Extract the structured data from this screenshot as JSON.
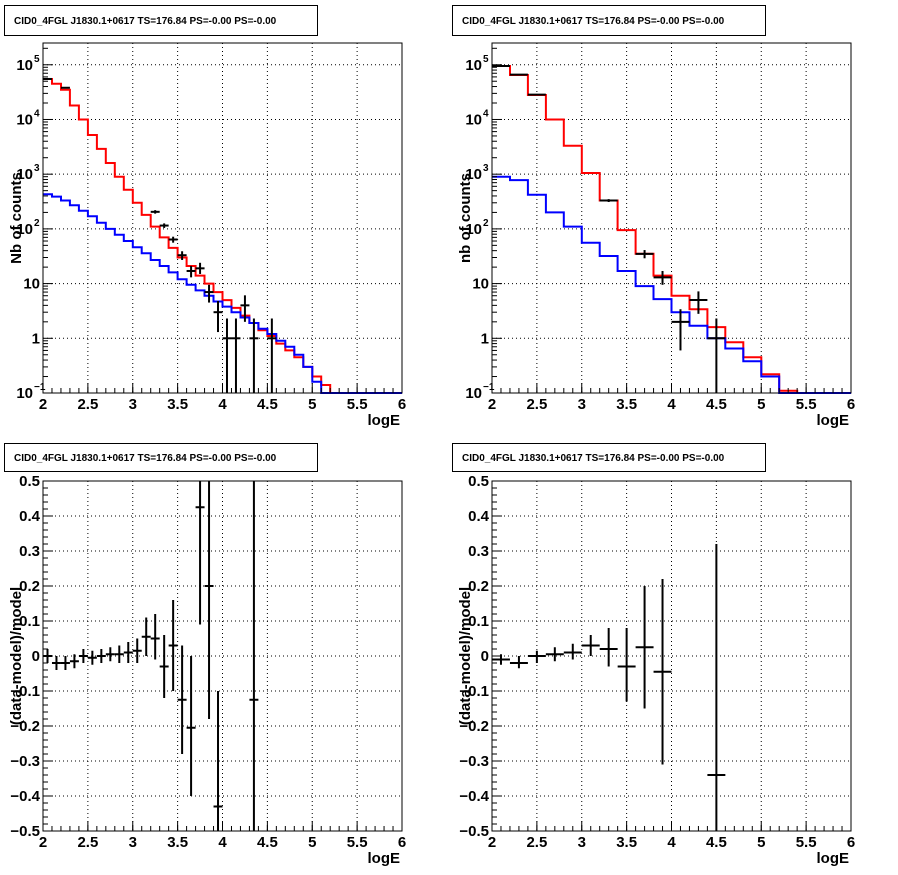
{
  "chart_data": [
    {
      "id": "tl",
      "type": "step",
      "title": "CID0_4FGL J1830.1+0617 TS=176.84 PS=-0.00 PS=-0.00",
      "xlabel": "logE",
      "ylabel": "Nb of counts",
      "xlim": [
        2,
        6
      ],
      "ylim": [
        0.1,
        250000
      ],
      "yscale": "log",
      "grid": true,
      "xticks": [
        "2",
        "2.5",
        "3",
        "3.5",
        "4",
        "4.5",
        "5",
        "5.5",
        "6"
      ],
      "yticks": [
        {
          "v": 0.1,
          "m": "10",
          "e": "−1"
        },
        {
          "v": 1,
          "m": "1",
          "e": ""
        },
        {
          "v": 10,
          "m": "10",
          "e": ""
        },
        {
          "v": 100,
          "m": "10",
          "e": "2"
        },
        {
          "v": 1000,
          "m": "10",
          "e": "3"
        },
        {
          "v": 10000,
          "m": "10",
          "e": "4"
        },
        {
          "v": 100000,
          "m": "10",
          "e": "5"
        }
      ],
      "bin_edges": [
        2.0,
        2.1,
        2.2,
        2.3,
        2.4,
        2.5,
        2.6,
        2.7,
        2.8,
        2.9,
        3.0,
        3.1,
        3.2,
        3.3,
        3.4,
        3.5,
        3.6,
        3.7,
        3.8,
        3.9,
        4.0,
        4.1,
        4.2,
        4.3,
        4.4,
        4.5,
        4.6,
        4.7,
        4.8,
        4.9,
        5.0,
        5.1,
        5.2,
        5.3,
        5.4,
        5.5,
        5.6,
        5.7,
        5.8,
        5.9,
        6.0
      ],
      "series": [
        {
          "color": "#ff0000",
          "values": [
            55000,
            45000,
            35000,
            18000,
            10000,
            5200,
            2900,
            1600,
            900,
            520,
            300,
            180,
            110,
            70,
            45,
            30,
            21,
            14,
            10,
            7,
            5,
            3.6,
            2.6,
            1.9,
            1.4,
            1.1,
            0.8,
            0.6,
            0.45,
            0.3,
            0.2,
            0.14,
            0.1,
            0.1,
            0.1,
            0.1,
            0.1,
            0.1,
            0.1,
            0.1
          ]
        },
        {
          "color": "#0000ff",
          "values": [
            430,
            390,
            330,
            270,
            215,
            170,
            130,
            100,
            78,
            60,
            46,
            36,
            27,
            21,
            16,
            12,
            9.5,
            7.5,
            6,
            4.7,
            3.8,
            3,
            2.4,
            1.9,
            1.5,
            1.2,
            0.9,
            0.7,
            0.5,
            0.3,
            0.16,
            0.1,
            0.1,
            0.1,
            0.1,
            0.1,
            0.1,
            0.1,
            0.1,
            0.1
          ]
        }
      ],
      "points": [
        {
          "x": 2.05,
          "y": 55000,
          "dx": 0.05,
          "lo": 54500,
          "hi": 55500
        },
        {
          "x": 2.25,
          "y": 38000,
          "dx": 0.05,
          "lo": 37600,
          "hi": 38400
        },
        {
          "x": 3.25,
          "y": 205,
          "dx": 0.05,
          "lo": 190,
          "hi": 220
        },
        {
          "x": 3.35,
          "y": 115,
          "dx": 0.05,
          "lo": 104,
          "hi": 126
        },
        {
          "x": 3.45,
          "y": 64,
          "dx": 0.05,
          "lo": 56,
          "hi": 72
        },
        {
          "x": 3.55,
          "y": 33,
          "dx": 0.05,
          "lo": 27,
          "hi": 39
        },
        {
          "x": 3.65,
          "y": 17,
          "dx": 0.05,
          "lo": 13,
          "hi": 21
        },
        {
          "x": 3.75,
          "y": 19,
          "dx": 0.05,
          "lo": 15,
          "hi": 24
        },
        {
          "x": 3.85,
          "y": 7,
          "dx": 0.05,
          "lo": 4.5,
          "hi": 9.5
        },
        {
          "x": 3.95,
          "y": 3,
          "dx": 0.05,
          "lo": 1.3,
          "hi": 4.8
        },
        {
          "x": 4.05,
          "y": 1,
          "dx": 0.05,
          "lo": 0.1,
          "hi": 2.3
        },
        {
          "x": 4.15,
          "y": 1,
          "dx": 0.05,
          "lo": 0.1,
          "hi": 2.3
        },
        {
          "x": 4.25,
          "y": 4,
          "dx": 0.05,
          "lo": 2,
          "hi": 6.1
        },
        {
          "x": 4.35,
          "y": 1,
          "dx": 0.05,
          "lo": 0.1,
          "hi": 2.3
        },
        {
          "x": 4.55,
          "y": 1,
          "dx": 0.05,
          "lo": 0.1,
          "hi": 2.3
        }
      ]
    },
    {
      "id": "tr",
      "type": "step",
      "title": "CID0_4FGL J1830.1+0617 TS=176.84 PS=-0.00 PS=-0.00",
      "xlabel": "logE",
      "ylabel": "nb of counts",
      "xlim": [
        2,
        6
      ],
      "ylim": [
        0.1,
        250000
      ],
      "yscale": "log",
      "grid": true,
      "xticks": [
        "2",
        "2.5",
        "3",
        "3.5",
        "4",
        "4.5",
        "5",
        "5.5",
        "6"
      ],
      "yticks": [
        {
          "v": 0.1,
          "m": "10",
          "e": "−1"
        },
        {
          "v": 1,
          "m": "1",
          "e": ""
        },
        {
          "v": 10,
          "m": "10",
          "e": ""
        },
        {
          "v": 100,
          "m": "10",
          "e": "2"
        },
        {
          "v": 1000,
          "m": "10",
          "e": "3"
        },
        {
          "v": 10000,
          "m": "10",
          "e": "4"
        },
        {
          "v": 100000,
          "m": "10",
          "e": "5"
        }
      ],
      "bin_edges": [
        2.0,
        2.2,
        2.4,
        2.6,
        2.8,
        3.0,
        3.2,
        3.4,
        3.6,
        3.8,
        4.0,
        4.2,
        4.4,
        4.6,
        4.8,
        5.0,
        5.2,
        5.4,
        5.6,
        5.8,
        6.0
      ],
      "series": [
        {
          "color": "#ff0000",
          "values": [
            95000,
            65000,
            28000,
            10000,
            3300,
            1050,
            330,
            95,
            35,
            14,
            6,
            3.4,
            1.6,
            0.85,
            0.45,
            0.22,
            0.11,
            0.1,
            0.1,
            0.1
          ]
        },
        {
          "color": "#0000ff",
          "values": [
            900,
            780,
            420,
            200,
            110,
            56,
            32,
            17,
            9,
            5.2,
            3,
            1.7,
            1,
            0.65,
            0.38,
            0.2,
            0.1,
            0.1,
            0.1,
            0.1
          ]
        }
      ],
      "points": [
        {
          "x": 2.1,
          "y": 95000,
          "dx": 0.1,
          "lo": 94500,
          "hi": 95500
        },
        {
          "x": 2.3,
          "y": 66000,
          "dx": 0.1,
          "lo": 65500,
          "hi": 66500
        },
        {
          "x": 2.5,
          "y": 28500,
          "dx": 0.1,
          "lo": 28200,
          "hi": 28800
        },
        {
          "x": 3.3,
          "y": 330,
          "dx": 0.1,
          "lo": 310,
          "hi": 350
        },
        {
          "x": 3.7,
          "y": 35,
          "dx": 0.1,
          "lo": 29,
          "hi": 41
        },
        {
          "x": 3.9,
          "y": 13,
          "dx": 0.1,
          "lo": 9.5,
          "hi": 17
        },
        {
          "x": 4.1,
          "y": 2,
          "dx": 0.1,
          "lo": 0.6,
          "hi": 3.4
        },
        {
          "x": 4.3,
          "y": 5,
          "dx": 0.1,
          "lo": 2.8,
          "hi": 7.2
        },
        {
          "x": 4.5,
          "y": 1,
          "dx": 0.1,
          "lo": 0.1,
          "hi": 2.3
        }
      ]
    },
    {
      "id": "bl",
      "type": "scatter",
      "title": "CID0_4FGL J1830.1+0617 TS=176.84 PS=-0.00 PS=-0.00",
      "xlabel": "logE",
      "ylabel": "(data-model)/model",
      "xlim": [
        2,
        6
      ],
      "ylim": [
        -0.5,
        0.5
      ],
      "yscale": "linear",
      "grid": true,
      "xticks": [
        "2",
        "2.5",
        "3",
        "3.5",
        "4",
        "4.5",
        "5",
        "5.5",
        "6"
      ],
      "yticks": [
        {
          "v": -0.5,
          "m": "−0.5",
          "e": ""
        },
        {
          "v": -0.4,
          "m": "−0.4",
          "e": ""
        },
        {
          "v": -0.3,
          "m": "−0.3",
          "e": ""
        },
        {
          "v": -0.2,
          "m": "−0.2",
          "e": ""
        },
        {
          "v": -0.1,
          "m": "−0.1",
          "e": ""
        },
        {
          "v": 0,
          "m": "0",
          "e": ""
        },
        {
          "v": 0.1,
          "m": "0.1",
          "e": ""
        },
        {
          "v": 0.2,
          "m": "0.2",
          "e": ""
        },
        {
          "v": 0.3,
          "m": "0.3",
          "e": ""
        },
        {
          "v": 0.4,
          "m": "0.4",
          "e": ""
        },
        {
          "v": 0.5,
          "m": "0.5",
          "e": ""
        }
      ],
      "points": [
        {
          "x": 2.05,
          "y": 0.0,
          "dx": 0.05,
          "lo": -0.02,
          "hi": 0.02
        },
        {
          "x": 2.15,
          "y": -0.02,
          "dx": 0.05,
          "lo": -0.04,
          "hi": 0.0
        },
        {
          "x": 2.25,
          "y": -0.02,
          "dx": 0.05,
          "lo": -0.04,
          "hi": 0.0
        },
        {
          "x": 2.35,
          "y": -0.015,
          "dx": 0.05,
          "lo": -0.035,
          "hi": 0.005
        },
        {
          "x": 2.45,
          "y": 0.0,
          "dx": 0.05,
          "lo": -0.02,
          "hi": 0.02
        },
        {
          "x": 2.55,
          "y": -0.005,
          "dx": 0.05,
          "lo": -0.025,
          "hi": 0.015
        },
        {
          "x": 2.65,
          "y": 0.0,
          "dx": 0.05,
          "lo": -0.02,
          "hi": 0.02
        },
        {
          "x": 2.75,
          "y": 0.005,
          "dx": 0.05,
          "lo": -0.015,
          "hi": 0.025
        },
        {
          "x": 2.85,
          "y": 0.005,
          "dx": 0.05,
          "lo": -0.02,
          "hi": 0.03
        },
        {
          "x": 2.95,
          "y": 0.01,
          "dx": 0.05,
          "lo": -0.02,
          "hi": 0.04
        },
        {
          "x": 3.05,
          "y": 0.015,
          "dx": 0.05,
          "lo": -0.02,
          "hi": 0.05
        },
        {
          "x": 3.15,
          "y": 0.055,
          "dx": 0.05,
          "lo": 0.0,
          "hi": 0.11
        },
        {
          "x": 3.25,
          "y": 0.05,
          "dx": 0.05,
          "lo": -0.01,
          "hi": 0.12
        },
        {
          "x": 3.35,
          "y": -0.03,
          "dx": 0.05,
          "lo": -0.12,
          "hi": 0.06
        },
        {
          "x": 3.45,
          "y": 0.03,
          "dx": 0.05,
          "lo": -0.1,
          "hi": 0.16
        },
        {
          "x": 3.55,
          "y": -0.125,
          "dx": 0.05,
          "lo": -0.28,
          "hi": 0.03
        },
        {
          "x": 3.65,
          "y": -0.205,
          "dx": 0.05,
          "lo": -0.4,
          "hi": 0.0
        },
        {
          "x": 3.75,
          "y": 0.425,
          "dx": 0.05,
          "lo": 0.09,
          "hi": 0.5
        },
        {
          "x": 3.85,
          "y": 0.2,
          "dx": 0.05,
          "lo": -0.18,
          "hi": 0.5
        },
        {
          "x": 3.95,
          "y": -0.43,
          "dx": 0.05,
          "lo": -0.5,
          "hi": -0.1
        },
        {
          "x": 4.35,
          "y": -0.125,
          "dx": 0.05,
          "lo": -0.5,
          "hi": 0.5
        }
      ]
    },
    {
      "id": "br",
      "type": "scatter",
      "title": "CID0_4FGL J1830.1+0617 TS=176.84 PS=-0.00 PS=-0.00",
      "xlabel": "logE",
      "ylabel": "(data-model)/model",
      "xlim": [
        2,
        6
      ],
      "ylim": [
        -0.5,
        0.5
      ],
      "yscale": "linear",
      "grid": true,
      "xticks": [
        "2",
        "2.5",
        "3",
        "3.5",
        "4",
        "4.5",
        "5",
        "5.5",
        "6"
      ],
      "yticks": [
        {
          "v": -0.5,
          "m": "−0.5",
          "e": ""
        },
        {
          "v": -0.4,
          "m": "−0.4",
          "e": ""
        },
        {
          "v": -0.3,
          "m": "−0.3",
          "e": ""
        },
        {
          "v": -0.2,
          "m": "−0.2",
          "e": ""
        },
        {
          "v": -0.1,
          "m": "−0.1",
          "e": ""
        },
        {
          "v": 0,
          "m": "0",
          "e": ""
        },
        {
          "v": 0.1,
          "m": "0.1",
          "e": ""
        },
        {
          "v": 0.2,
          "m": "0.2",
          "e": ""
        },
        {
          "v": 0.3,
          "m": "0.3",
          "e": ""
        },
        {
          "v": 0.4,
          "m": "0.4",
          "e": ""
        },
        {
          "v": 0.5,
          "m": "0.5",
          "e": ""
        }
      ],
      "points": [
        {
          "x": 2.1,
          "y": -0.01,
          "dx": 0.1,
          "lo": -0.025,
          "hi": 0.005
        },
        {
          "x": 2.3,
          "y": -0.02,
          "dx": 0.1,
          "lo": -0.035,
          "hi": 0.0
        },
        {
          "x": 2.5,
          "y": 0.0,
          "dx": 0.1,
          "lo": -0.02,
          "hi": 0.015
        },
        {
          "x": 2.7,
          "y": 0.005,
          "dx": 0.1,
          "lo": -0.015,
          "hi": 0.025
        },
        {
          "x": 2.9,
          "y": 0.01,
          "dx": 0.1,
          "lo": -0.01,
          "hi": 0.035
        },
        {
          "x": 3.1,
          "y": 0.03,
          "dx": 0.1,
          "lo": 0.0,
          "hi": 0.06
        },
        {
          "x": 3.3,
          "y": 0.02,
          "dx": 0.1,
          "lo": -0.03,
          "hi": 0.08
        },
        {
          "x": 3.5,
          "y": -0.03,
          "dx": 0.1,
          "lo": -0.13,
          "hi": 0.08
        },
        {
          "x": 3.7,
          "y": 0.025,
          "dx": 0.1,
          "lo": -0.15,
          "hi": 0.2
        },
        {
          "x": 3.9,
          "y": -0.045,
          "dx": 0.1,
          "lo": -0.31,
          "hi": 0.22
        },
        {
          "x": 4.5,
          "y": -0.34,
          "dx": 0.1,
          "lo": -0.5,
          "hi": 0.32
        }
      ]
    }
  ]
}
